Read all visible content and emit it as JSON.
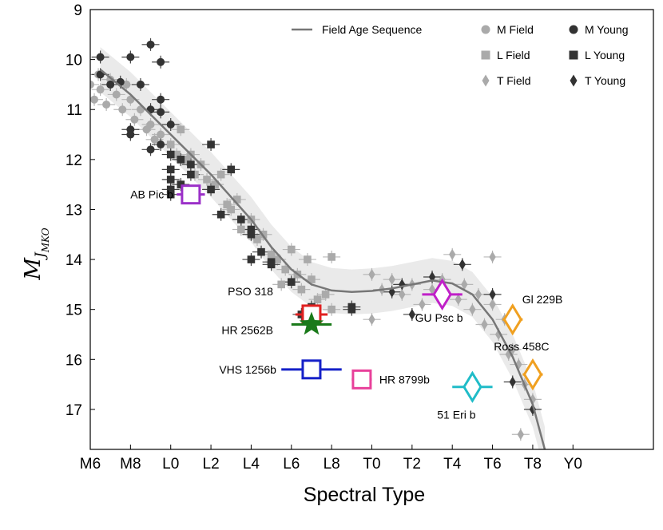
{
  "chart_data": {
    "type": "scatter",
    "xlabel": "Spectral Type",
    "ylabel": {
      "main": "M",
      "sub": "J",
      "subsub": "MKO"
    },
    "xlim": [
      -4,
      24
    ],
    "ylim": [
      17.8,
      9
    ],
    "x_ticks": [
      {
        "value": -4,
        "label": "M6"
      },
      {
        "value": -2,
        "label": "M8"
      },
      {
        "value": 0,
        "label": "L0"
      },
      {
        "value": 2,
        "label": "L2"
      },
      {
        "value": 4,
        "label": "L4"
      },
      {
        "value": 6,
        "label": "L6"
      },
      {
        "value": 8,
        "label": "L8"
      },
      {
        "value": 10,
        "label": "T0"
      },
      {
        "value": 12,
        "label": "T2"
      },
      {
        "value": 14,
        "label": "T4"
      },
      {
        "value": 16,
        "label": "T6"
      },
      {
        "value": 18,
        "label": "T8"
      },
      {
        "value": 20,
        "label": "Y0"
      }
    ],
    "y_ticks": [
      {
        "value": 9,
        "label": "9"
      },
      {
        "value": 10,
        "label": "10"
      },
      {
        "value": 11,
        "label": "11"
      },
      {
        "value": 12,
        "label": "12"
      },
      {
        "value": 13,
        "label": "13"
      },
      {
        "value": 14,
        "label": "14"
      },
      {
        "value": 15,
        "label": "15"
      },
      {
        "value": 16,
        "label": "16"
      },
      {
        "value": 17,
        "label": "17"
      }
    ],
    "legend": {
      "placement": "top",
      "entries": [
        {
          "label": "Field Age Sequence",
          "marker": "line",
          "color": "#777777"
        },
        {
          "label": "M Field",
          "marker": "circle",
          "color": "#aaaaaa"
        },
        {
          "label": "M Young",
          "marker": "circle",
          "color": "#333333"
        },
        {
          "label": "L Field",
          "marker": "square",
          "color": "#aaaaaa"
        },
        {
          "label": "L Young",
          "marker": "square",
          "color": "#333333"
        },
        {
          "label": "T Field",
          "marker": "diamond",
          "color": "#aaaaaa"
        },
        {
          "label": "T Young",
          "marker": "diamond",
          "color": "#333333"
        }
      ]
    },
    "sequence": {
      "name": "Field Age Sequence",
      "color": "#777777",
      "band_halfwidth_mag": 0.45,
      "points": [
        [
          -3.5,
          10.2
        ],
        [
          -2,
          10.7
        ],
        [
          0,
          11.5
        ],
        [
          2,
          12.3
        ],
        [
          4,
          13.2
        ],
        [
          5,
          13.75
        ],
        [
          6,
          14.2
        ],
        [
          7,
          14.5
        ],
        [
          8,
          14.62
        ],
        [
          9,
          14.65
        ],
        [
          10,
          14.63
        ],
        [
          11,
          14.58
        ],
        [
          12,
          14.5
        ],
        [
          13,
          14.42
        ],
        [
          14,
          14.48
        ],
        [
          15,
          14.7
        ],
        [
          16,
          15.2
        ],
        [
          17,
          15.95
        ],
        [
          18,
          16.9
        ],
        [
          18.6,
          17.8
        ]
      ]
    },
    "field_sample": {
      "color": "#aaaaaa",
      "M": [
        [
          -4,
          10.5
        ],
        [
          -3.8,
          10.8
        ],
        [
          -3.5,
          10.6
        ],
        [
          -3.2,
          10.9
        ],
        [
          -3,
          10.4
        ],
        [
          -2.7,
          10.7
        ],
        [
          -2.4,
          11.0
        ],
        [
          -2,
          10.8
        ],
        [
          -1.8,
          11.2
        ],
        [
          -1.5,
          11.0
        ],
        [
          -1.2,
          11.4
        ],
        [
          -1,
          11.3
        ],
        [
          -0.8,
          11.6
        ],
        [
          -0.5,
          11.5
        ],
        [
          -3.6,
          10.3
        ],
        [
          -2.2,
          10.5
        ]
      ],
      "L": [
        [
          0,
          11.7
        ],
        [
          0.3,
          11.9
        ],
        [
          0.5,
          11.4
        ],
        [
          0.8,
          12.0
        ],
        [
          1,
          11.9
        ],
        [
          1.2,
          12.3
        ],
        [
          1.5,
          12.1
        ],
        [
          1.8,
          12.4
        ],
        [
          2.2,
          12.5
        ],
        [
          2.5,
          12.3
        ],
        [
          2.8,
          12.9
        ],
        [
          3,
          13.0
        ],
        [
          3.3,
          12.8
        ],
        [
          3.5,
          13.4
        ],
        [
          4,
          13.2
        ],
        [
          4.3,
          13.6
        ],
        [
          4.6,
          13.5
        ],
        [
          5,
          13.9
        ],
        [
          5.3,
          14.0
        ],
        [
          5.7,
          14.2
        ],
        [
          6,
          13.8
        ],
        [
          6.3,
          14.3
        ],
        [
          6.5,
          14.6
        ],
        [
          7,
          14.4
        ],
        [
          7.3,
          14.8
        ],
        [
          7.7,
          14.7
        ],
        [
          8,
          13.95
        ],
        [
          8,
          15.0
        ],
        [
          6.8,
          14.0
        ],
        [
          5.5,
          14.5
        ]
      ],
      "T": [
        [
          10,
          14.3
        ],
        [
          10,
          15.2
        ],
        [
          10.5,
          14.6
        ],
        [
          11,
          14.4
        ],
        [
          11.5,
          14.7
        ],
        [
          12,
          14.5
        ],
        [
          12.5,
          14.9
        ],
        [
          13,
          14.6
        ],
        [
          13.5,
          14.4
        ],
        [
          14,
          13.9
        ],
        [
          14.3,
          14.8
        ],
        [
          14.6,
          14.5
        ],
        [
          15,
          15.0
        ],
        [
          15.3,
          14.7
        ],
        [
          15.6,
          15.3
        ],
        [
          16,
          14.9
        ],
        [
          16,
          13.95
        ],
        [
          16.3,
          15.5
        ],
        [
          16.6,
          15.2
        ],
        [
          17,
          15.8
        ],
        [
          17.3,
          16.1
        ],
        [
          17.6,
          16.5
        ],
        [
          18,
          16.8
        ],
        [
          17.4,
          17.5
        ],
        [
          16.8,
          15.9
        ]
      ]
    },
    "young_sample": {
      "color": "#333333",
      "M": [
        [
          -3.5,
          9.95
        ],
        [
          -2,
          9.95
        ],
        [
          -1,
          9.7
        ],
        [
          -0.5,
          10.05
        ],
        [
          -0.5,
          10.8
        ],
        [
          -3.5,
          10.3
        ],
        [
          -3,
          10.5
        ],
        [
          -2.5,
          10.45
        ],
        [
          -1.5,
          10.5
        ],
        [
          -1,
          11.0
        ],
        [
          -2,
          11.4
        ],
        [
          -2,
          11.5
        ],
        [
          -1,
          11.8
        ],
        [
          -0.5,
          11.7
        ],
        [
          0,
          11.3
        ],
        [
          -0.5,
          11.05
        ]
      ],
      "L": [
        [
          0,
          11.9
        ],
        [
          0,
          12.2
        ],
        [
          0,
          12.4
        ],
        [
          0,
          12.6
        ],
        [
          0,
          12.7
        ],
        [
          0.5,
          12.0
        ],
        [
          0.5,
          12.5
        ],
        [
          1,
          12.1
        ],
        [
          1,
          12.3
        ],
        [
          2,
          11.7
        ],
        [
          2,
          12.6
        ],
        [
          2.5,
          13.1
        ],
        [
          3,
          12.2
        ],
        [
          3.5,
          13.2
        ],
        [
          4,
          13.4
        ],
        [
          4,
          13.5
        ],
        [
          4.5,
          13.85
        ],
        [
          5,
          14.05
        ],
        [
          5,
          14.1
        ],
        [
          6,
          14.45
        ],
        [
          6.5,
          15.1
        ],
        [
          7,
          14.95
        ],
        [
          9,
          14.95
        ],
        [
          9,
          15.0
        ],
        [
          4,
          14.0
        ]
      ],
      "T": [
        [
          11,
          14.65
        ],
        [
          11.5,
          14.5
        ],
        [
          12,
          15.1
        ],
        [
          13,
          14.35
        ],
        [
          14.5,
          14.1
        ],
        [
          16,
          14.7
        ],
        [
          17,
          16.45
        ],
        [
          18,
          17.0
        ]
      ]
    },
    "objects": [
      {
        "name": "AB Pic b",
        "x": 1,
        "y": 12.7,
        "marker": "square",
        "color": "#9b30c8",
        "xerr": 0.7
      },
      {
        "name": "PSO 318",
        "x": 7,
        "y": 15.1,
        "marker": "square",
        "color": "#e02020",
        "xerr": 0.8
      },
      {
        "name": "HR 2562B",
        "x": 7,
        "y": 15.3,
        "marker": "star",
        "color": "#1a7a1a",
        "xerr": 1.0
      },
      {
        "name": "VHS 1256b",
        "x": 7,
        "y": 16.2,
        "marker": "square",
        "color": "#1520c8",
        "xerr": 1.5
      },
      {
        "name": "HR 8799b",
        "x": 9.5,
        "y": 16.4,
        "marker": "square",
        "color": "#e8409a",
        "xerr": 0.5
      },
      {
        "name": "GU Psc b",
        "x": 13.5,
        "y": 14.7,
        "marker": "diamond",
        "color": "#c020c8",
        "xerr": 1.0
      },
      {
        "name": "51 Eri b",
        "x": 15,
        "y": 16.55,
        "marker": "diamond",
        "color": "#20bcc8",
        "xerr": 1.0
      },
      {
        "name": "Gl 229B",
        "x": 17,
        "y": 15.2,
        "marker": "diamond",
        "color": "#f0a020",
        "xerr": 0.5
      },
      {
        "name": "Ross 458C",
        "x": 18,
        "y": 16.3,
        "marker": "diamond",
        "color": "#f0a020",
        "xerr": 0.5
      }
    ]
  }
}
